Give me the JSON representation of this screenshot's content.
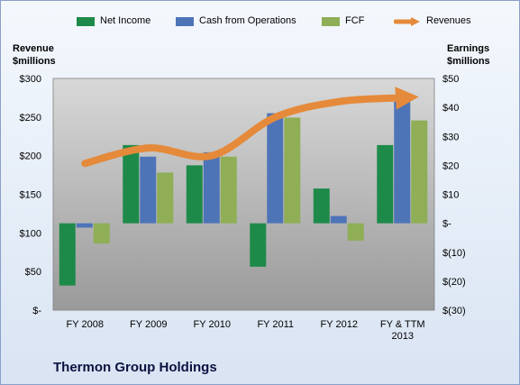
{
  "chart_data": {
    "type": "bar",
    "title": "Thermon Group Holdings",
    "categories": [
      "FY 2008",
      "FY 2009",
      "FY 2010",
      "FY 2011",
      "FY 2012",
      "FY & TTM 2013"
    ],
    "left_axis": {
      "label": "Revenue\n$millions",
      "range": [
        0,
        300
      ],
      "ticks": [
        "$-",
        "$50",
        "$100",
        "$150",
        "$200",
        "$250",
        "$300"
      ],
      "tick_values": [
        0,
        50,
        100,
        150,
        200,
        250,
        300
      ]
    },
    "right_axis": {
      "label": "Earnings\n$millions",
      "range": [
        -30,
        50
      ],
      "ticks": [
        "$(30)",
        "$(20)",
        "$(10)",
        "$-",
        "$10",
        "$20",
        "$30",
        "$40",
        "$50"
      ],
      "tick_values": [
        -30,
        -20,
        -10,
        0,
        10,
        20,
        30,
        40,
        50
      ]
    },
    "series": [
      {
        "name": "Net Income",
        "kind": "bar",
        "axis": "right",
        "color": "#1e8a4a",
        "values": [
          -21.5,
          27,
          20,
          -15,
          12,
          27
        ]
      },
      {
        "name": "Cash from Operations",
        "kind": "bar",
        "axis": "right",
        "color": "#4e74b8",
        "values": [
          -1.5,
          23,
          24.5,
          38,
          2.5,
          42
        ]
      },
      {
        "name": "FCF",
        "kind": "bar",
        "axis": "right",
        "color": "#8fae56",
        "values": [
          -7,
          17.5,
          23,
          36.5,
          -6,
          35.5
        ]
      },
      {
        "name": "Revenues",
        "kind": "line",
        "axis": "left",
        "color": "#e58a3a",
        "values": [
          190,
          210,
          200,
          250,
          270,
          275
        ]
      }
    ],
    "legend_position": "top",
    "grid": false
  }
}
